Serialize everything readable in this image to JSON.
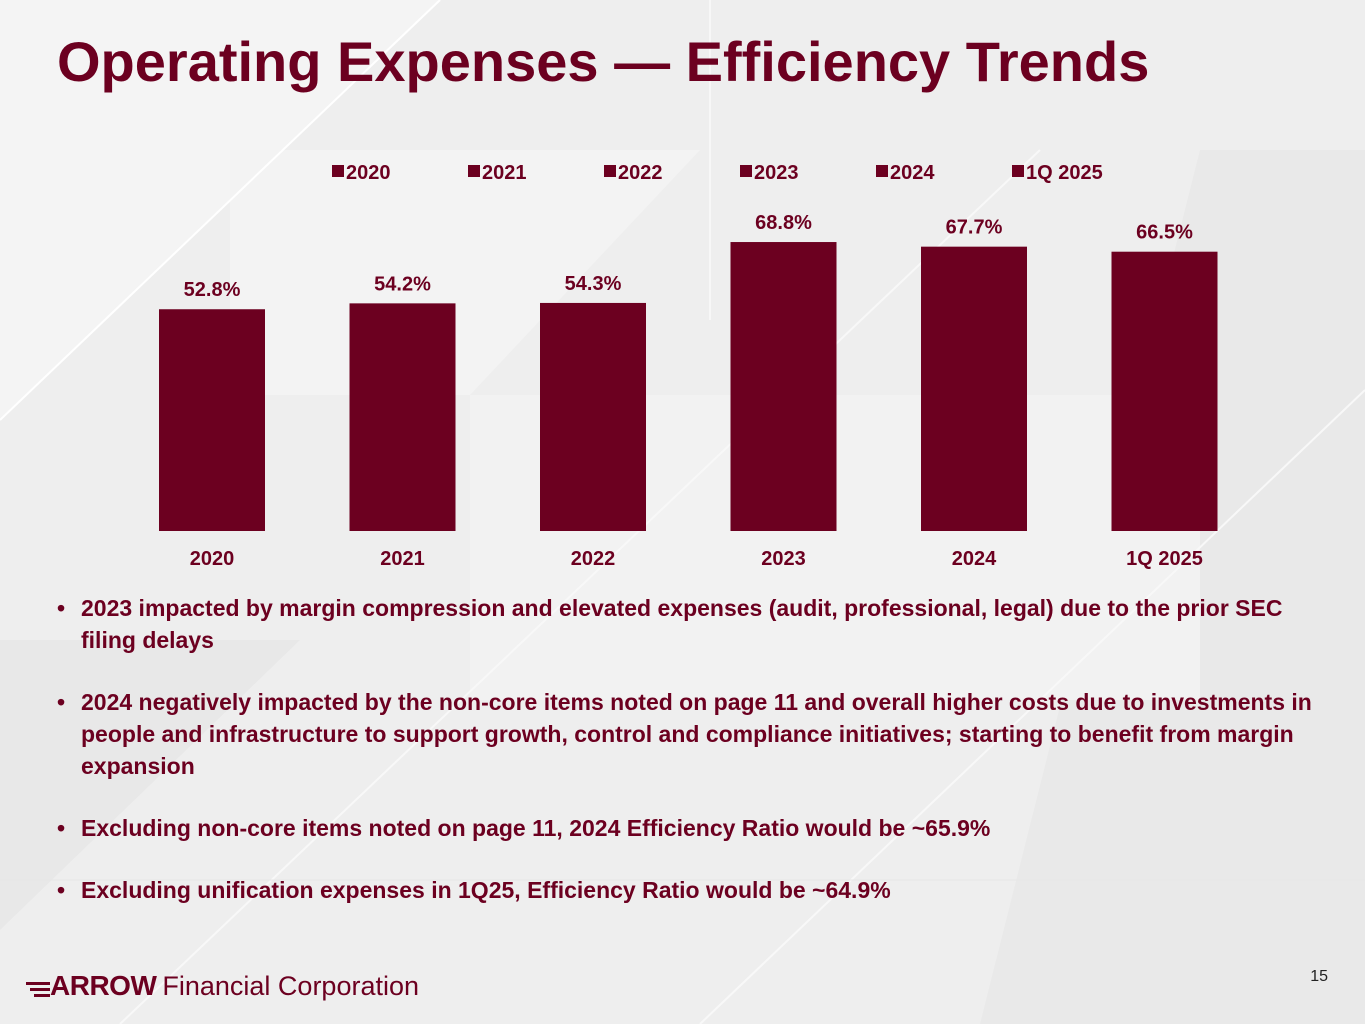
{
  "slide": {
    "title": "Operating Expenses — Efficiency Trends",
    "page_number": "15"
  },
  "chart_data": {
    "type": "bar",
    "title": "",
    "xlabel": "",
    "ylabel": "",
    "categories": [
      "2020",
      "2021",
      "2022",
      "2023",
      "2024",
      "1Q 2025"
    ],
    "values": [
      52.8,
      54.2,
      54.3,
      68.8,
      67.7,
      66.5
    ],
    "value_labels": [
      "52.8%",
      "54.2%",
      "54.3%",
      "68.8%",
      "67.7%",
      "66.5%"
    ],
    "ylim": [
      0,
      72
    ],
    "legend": {
      "position": "top",
      "entries": [
        "2020",
        "2021",
        "2022",
        "2023",
        "2024",
        "1Q 2025"
      ]
    },
    "grid": false,
    "bar_color": "#6c0020"
  },
  "bullets": [
    "2023 impacted by margin compression and elevated expenses (audit, professional, legal) due to the prior SEC filing delays",
    "2024 negatively impacted by the non-core items noted on page 11 and overall higher costs due to investments in people and infrastructure to support growth, control and compliance initiatives; starting to benefit from margin expansion",
    "Excluding non-core items noted on page 11, 2024 Efficiency Ratio would be ~65.9%",
    "Excluding unification expenses in 1Q25, Efficiency Ratio would be ~64.9%"
  ],
  "logo": {
    "bold": "ARROW",
    "rest": "Financial Corporation"
  },
  "colors": {
    "accent": "#6c0020",
    "background": "#efefef"
  }
}
